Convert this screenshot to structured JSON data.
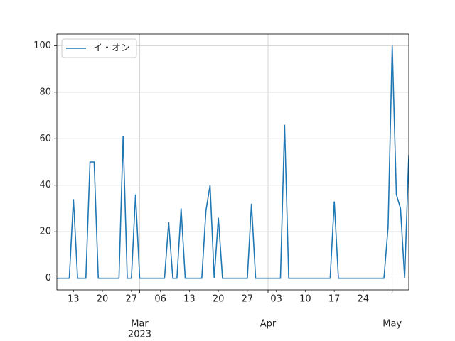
{
  "chart_data": {
    "type": "line",
    "x": [
      "2023-02-09",
      "2023-02-10",
      "2023-02-11",
      "2023-02-12",
      "2023-02-13",
      "2023-02-14",
      "2023-02-15",
      "2023-02-16",
      "2023-02-17",
      "2023-02-18",
      "2023-02-19",
      "2023-02-20",
      "2023-02-21",
      "2023-02-22",
      "2023-02-23",
      "2023-02-24",
      "2023-02-25",
      "2023-02-26",
      "2023-02-27",
      "2023-02-28",
      "2023-03-01",
      "2023-03-02",
      "2023-03-03",
      "2023-03-04",
      "2023-03-05",
      "2023-03-06",
      "2023-03-07",
      "2023-03-08",
      "2023-03-09",
      "2023-03-10",
      "2023-03-11",
      "2023-03-12",
      "2023-03-13",
      "2023-03-14",
      "2023-03-15",
      "2023-03-16",
      "2023-03-17",
      "2023-03-18",
      "2023-03-19",
      "2023-03-20",
      "2023-03-21",
      "2023-03-22",
      "2023-03-23",
      "2023-03-24",
      "2023-03-25",
      "2023-03-26",
      "2023-03-27",
      "2023-03-28",
      "2023-03-29",
      "2023-03-30",
      "2023-03-31",
      "2023-04-01",
      "2023-04-02",
      "2023-04-03",
      "2023-04-04",
      "2023-04-05",
      "2023-04-06",
      "2023-04-07",
      "2023-04-08",
      "2023-04-09",
      "2023-04-10",
      "2023-04-11",
      "2023-04-12",
      "2023-04-13",
      "2023-04-14",
      "2023-04-15",
      "2023-04-16",
      "2023-04-17",
      "2023-04-18",
      "2023-04-19",
      "2023-04-20",
      "2023-04-21",
      "2023-04-22",
      "2023-04-23",
      "2023-04-24",
      "2023-04-25",
      "2023-04-26",
      "2023-04-27",
      "2023-04-28",
      "2023-04-29",
      "2023-04-30",
      "2023-05-01",
      "2023-05-02",
      "2023-05-03",
      "2023-05-04",
      "2023-05-05"
    ],
    "series": [
      {
        "name": "イ・オン",
        "color": "#1f77b4",
        "values": [
          0,
          0,
          0,
          0,
          34,
          0,
          0,
          0,
          50,
          50,
          0,
          0,
          0,
          0,
          0,
          0,
          61,
          0,
          0,
          36,
          0,
          0,
          0,
          0,
          0,
          0,
          0,
          24,
          0,
          0,
          30,
          0,
          0,
          0,
          0,
          0,
          29,
          40,
          0,
          26,
          0,
          0,
          0,
          0,
          0,
          0,
          0,
          32,
          0,
          0,
          0,
          0,
          0,
          0,
          0,
          66,
          0,
          0,
          0,
          0,
          0,
          0,
          0,
          0,
          0,
          0,
          0,
          33,
          0,
          0,
          0,
          0,
          0,
          0,
          0,
          0,
          0,
          0,
          0,
          0,
          22,
          100,
          36,
          30,
          0,
          53
        ]
      }
    ],
    "xlim": [
      "2023-02-09",
      "2023-05-05"
    ],
    "xticks": [
      {
        "value": "2023-03-01",
        "label": "Mar"
      },
      {
        "value": "2023-04-01",
        "label": "Apr"
      },
      {
        "value": "2023-05-01",
        "label": "May"
      }
    ],
    "xminorticks": [
      {
        "value": "2023-02-13",
        "label": "13"
      },
      {
        "value": "2023-02-20",
        "label": "20"
      },
      {
        "value": "2023-02-27",
        "label": "27"
      },
      {
        "value": "2023-03-06",
        "label": "06"
      },
      {
        "value": "2023-03-13",
        "label": "13"
      },
      {
        "value": "2023-03-20",
        "label": "20"
      },
      {
        "value": "2023-03-27",
        "label": "27"
      },
      {
        "value": "2023-04-03",
        "label": "03"
      },
      {
        "value": "2023-04-10",
        "label": "10"
      },
      {
        "value": "2023-04-17",
        "label": "17"
      },
      {
        "value": "2023-04-24",
        "label": "24"
      }
    ],
    "x_offset_label": "2023",
    "ylim": [
      -5,
      105
    ],
    "yticks": [
      0,
      20,
      40,
      60,
      80,
      100
    ],
    "grid": true,
    "legend": "upper left"
  }
}
